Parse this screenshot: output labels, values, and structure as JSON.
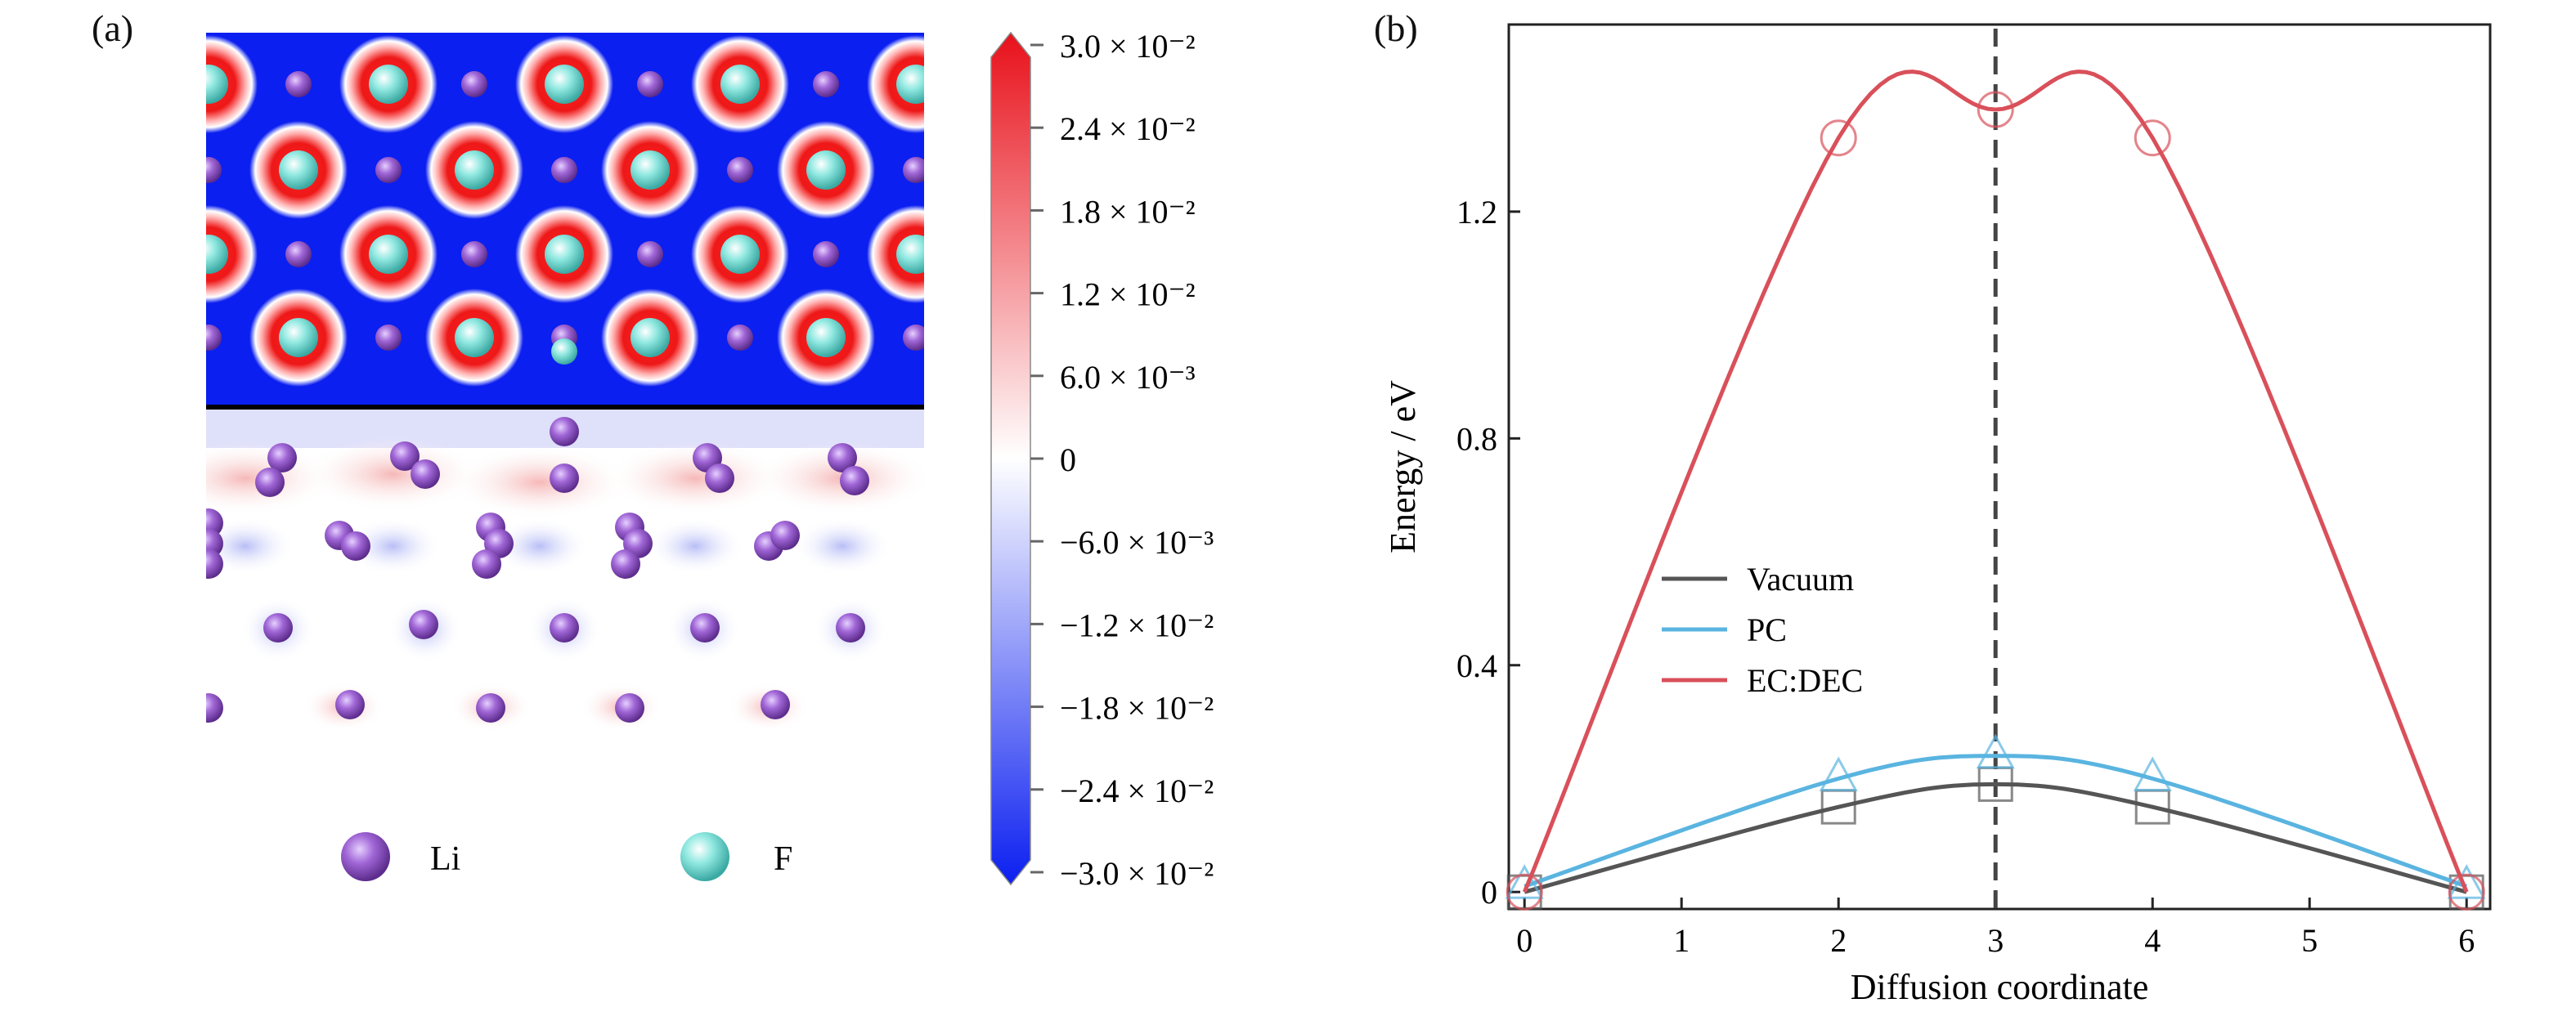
{
  "panel_a": {
    "label": "(a)",
    "colorbar": {
      "ticks": [
        "3.0 × 10⁻²",
        "2.4 × 10⁻²",
        "1.8 × 10⁻²",
        "1.2 × 10⁻²",
        "6.0 × 10⁻³",
        "0",
        "−6.0 × 10⁻³",
        "−1.2 × 10⁻²",
        "−1.8 × 10⁻²",
        "−2.4 × 10⁻²",
        "−3.0 × 10⁻²"
      ],
      "colors": {
        "max": "#e8101a",
        "mid": "#ffffff",
        "min": "#0b1ff0"
      }
    },
    "legend": {
      "li_label": "Li",
      "f_label": "F",
      "li_color": "#a066d6",
      "f_color": "#8fe8e0"
    }
  },
  "panel_b": {
    "label": "(b)"
  },
  "chart_data": {
    "type": "line",
    "title": "",
    "xlabel": "Diffusion coordinate",
    "ylabel": "Energy / eV",
    "xlim": [
      -0.1,
      6.15
    ],
    "ylim": [
      -0.03,
      1.53
    ],
    "xticks": [
      0,
      1,
      2,
      3,
      4,
      5,
      6
    ],
    "yticks": [
      0,
      0.4,
      0.8,
      1.2
    ],
    "ytick_labels": [
      "0",
      "0.4",
      "0.8",
      "1.2"
    ],
    "vline_x": 3,
    "legend_position": "left-middle",
    "series": [
      {
        "name": "Vacuum",
        "color": "#555555",
        "marker": "square",
        "points": [
          [
            0,
            0
          ],
          [
            2,
            0.15
          ],
          [
            3,
            0.19
          ],
          [
            4,
            0.15
          ],
          [
            6,
            0
          ]
        ]
      },
      {
        "name": "PC",
        "color": "#5ab4e0",
        "marker": "triangle",
        "points": [
          [
            0,
            0.01
          ],
          [
            2,
            0.2
          ],
          [
            3,
            0.24
          ],
          [
            4,
            0.2
          ],
          [
            6,
            0.01
          ]
        ]
      },
      {
        "name": "EC:DEC",
        "color": "#d9505a",
        "marker": "circle",
        "points": [
          [
            0,
            0
          ],
          [
            2,
            1.33
          ],
          [
            3,
            1.38
          ],
          [
            4,
            1.33
          ],
          [
            6,
            0
          ]
        ]
      }
    ]
  }
}
